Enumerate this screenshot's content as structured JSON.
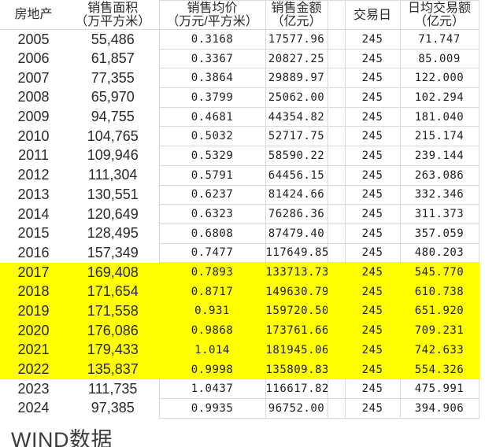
{
  "chart_data": {
    "type": "table",
    "title": "",
    "columns": [
      {
        "key": "year",
        "label": "房地产",
        "unit": ""
      },
      {
        "key": "area",
        "label": "销售面积",
        "unit": "（万平方米）"
      },
      {
        "key": "price",
        "label": "销售均价",
        "unit": "（万元/平方米）"
      },
      {
        "key": "amount",
        "label": "销售金额",
        "unit": "（亿元）"
      },
      {
        "key": "days",
        "label": "交易日",
        "unit": ""
      },
      {
        "key": "daily",
        "label": "日均交易额",
        "unit": "（亿元）"
      }
    ],
    "rows": [
      [
        "2005",
        "55,486",
        "0.3168",
        "17577.96",
        "245",
        "71.747"
      ],
      [
        "2006",
        "61,857",
        "0.3367",
        "20827.25",
        "245",
        "85.009"
      ],
      [
        "2007",
        "77,355",
        "0.3864",
        "29889.97",
        "245",
        "122.000"
      ],
      [
        "2008",
        "65,970",
        "0.3799",
        "25062.00",
        "245",
        "102.294"
      ],
      [
        "2009",
        "94,755",
        "0.4681",
        "44354.82",
        "245",
        "181.040"
      ],
      [
        "2010",
        "104,765",
        "0.5032",
        "52717.75",
        "245",
        "215.174"
      ],
      [
        "2011",
        "109,946",
        "0.5329",
        "58590.22",
        "245",
        "239.144"
      ],
      [
        "2012",
        "111,304",
        "0.5791",
        "64456.15",
        "245",
        "263.086"
      ],
      [
        "2013",
        "130,551",
        "0.6237",
        "81424.66",
        "245",
        "332.346"
      ],
      [
        "2014",
        "120,649",
        "0.6323",
        "76286.36",
        "245",
        "311.373"
      ],
      [
        "2015",
        "128,495",
        "0.6808",
        "87479.40",
        "245",
        "357.059"
      ],
      [
        "2016",
        "157,349",
        "0.7477",
        "117649.85",
        "245",
        "480.203"
      ],
      [
        "2017",
        "169,408",
        "0.7893",
        "133713.73",
        "245",
        "545.770"
      ],
      [
        "2018",
        "171,654",
        "0.8717",
        "149630.79",
        "245",
        "610.738"
      ],
      [
        "2019",
        "171,558",
        "0.931",
        "159720.50",
        "245",
        "651.920"
      ],
      [
        "2020",
        "176,086",
        "0.9868",
        "173761.66",
        "245",
        "709.231"
      ],
      [
        "2021",
        "179,433",
        "1.014",
        "181945.06",
        "245",
        "742.633"
      ],
      [
        "2022",
        "135,837",
        "0.9998",
        "135809.83",
        "245",
        "554.326"
      ],
      [
        "2023",
        "111,735",
        "1.0437",
        "116617.82",
        "245",
        "475.991"
      ],
      [
        "2024",
        "97,385",
        "0.9935",
        "96752.00",
        "245",
        "394.906"
      ]
    ],
    "highlight_rows": [
      "2017",
      "2018",
      "2019",
      "2020",
      "2021",
      "2022"
    ],
    "highlight_color": "#ffff00",
    "grid_color": "#d9d9d9",
    "source": "WIND数据"
  },
  "footer": {
    "source_label": "WIND数据"
  }
}
